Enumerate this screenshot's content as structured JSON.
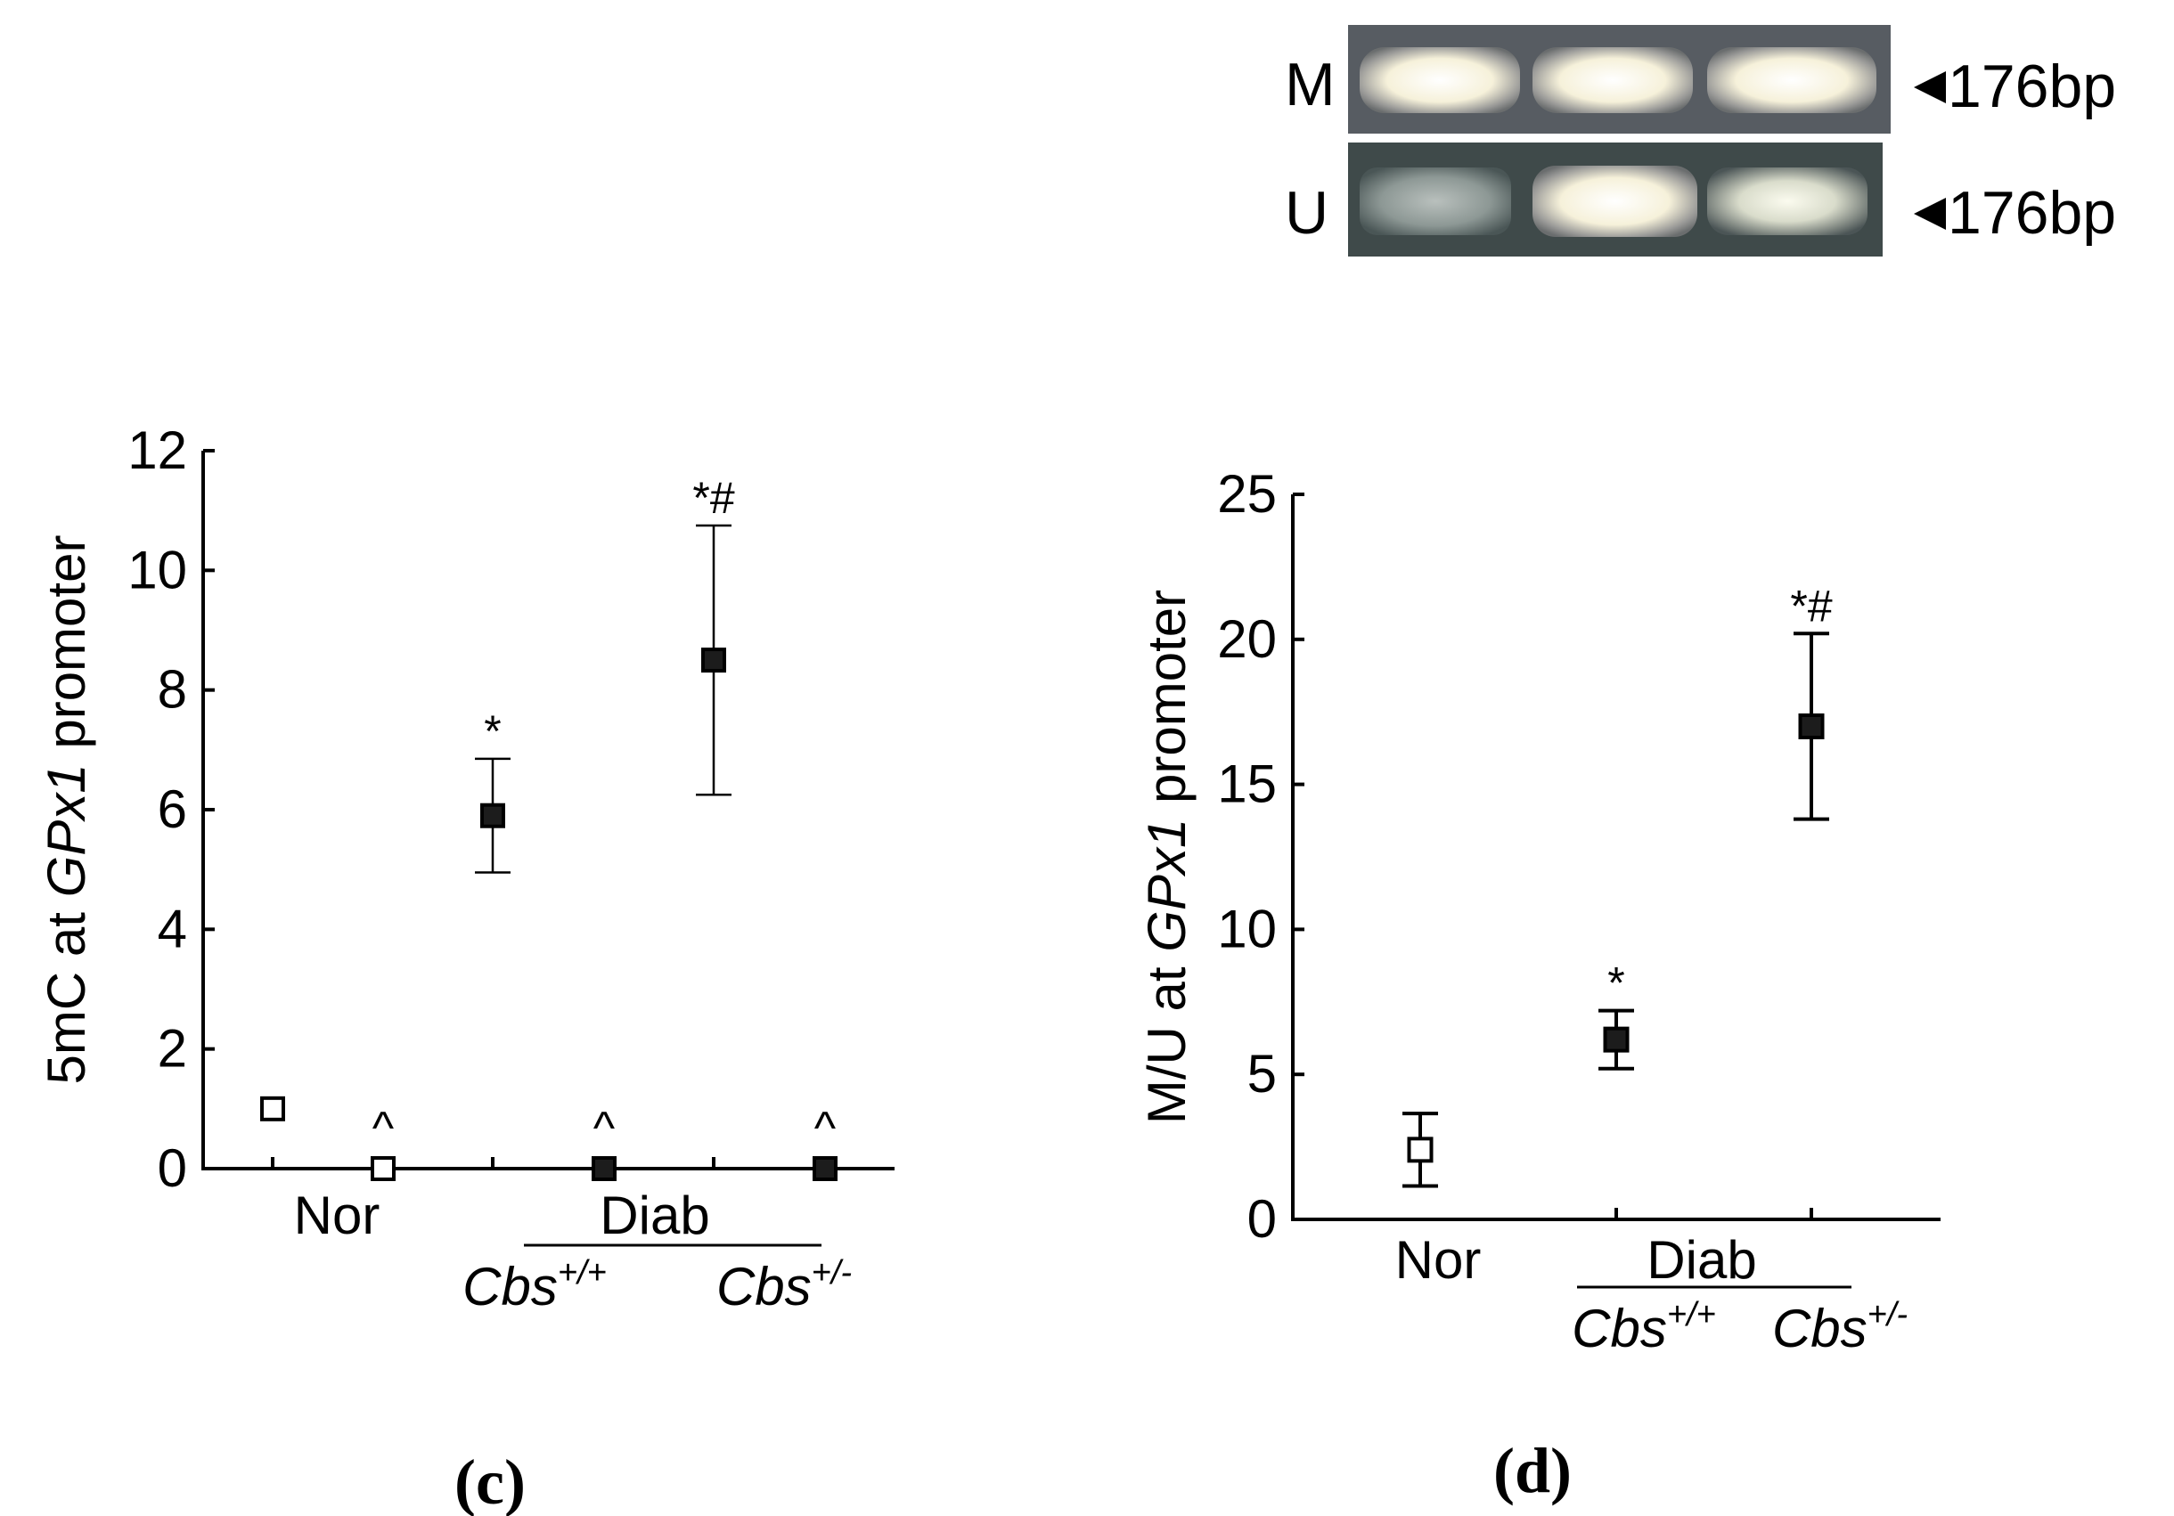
{
  "gel": {
    "rows": [
      {
        "label": "M",
        "marker": "176bp"
      },
      {
        "label": "U",
        "marker": "176bp"
      }
    ]
  },
  "chart_data": [
    {
      "type": "scatter",
      "panel": "(c)",
      "ylabel_parts": [
        "5mC at ",
        "GPx1",
        " promoter"
      ],
      "ylim": [
        0,
        12
      ],
      "yticks": [
        0,
        2,
        4,
        6,
        8,
        10,
        12
      ],
      "group_labels": {
        "nor": "Nor",
        "diab": "Diab",
        "cbs_wt": "Cbs",
        "cbs_wt_sup": "+/+",
        "cbs_het": "Cbs",
        "cbs_het_sup": "+/-"
      },
      "points": [
        {
          "x": 1,
          "y": 1.0,
          "err": 0,
          "filled": false,
          "annotation": ""
        },
        {
          "x": 2,
          "y": 0.0,
          "err": 0,
          "filled": false,
          "annotation": "^"
        },
        {
          "x": 3,
          "y": 5.9,
          "err": 0.95,
          "filled": true,
          "annotation": "*"
        },
        {
          "x": 4,
          "y": 0.0,
          "err": 0,
          "filled": true,
          "annotation": "^"
        },
        {
          "x": 5,
          "y": 8.5,
          "err": 2.25,
          "filled": true,
          "annotation": "*#"
        },
        {
          "x": 6,
          "y": 0.0,
          "err": 0,
          "filled": true,
          "annotation": "^"
        }
      ]
    },
    {
      "type": "scatter",
      "panel": "(d)",
      "ylabel_parts": [
        "M/U at ",
        "GPx1",
        " promoter"
      ],
      "ylim": [
        0,
        25
      ],
      "yticks": [
        0,
        5,
        10,
        15,
        20,
        25
      ],
      "group_labels": {
        "nor": "Nor",
        "diab": "Diab",
        "cbs_wt": "Cbs",
        "cbs_wt_sup": "+/+",
        "cbs_het": "Cbs",
        "cbs_het_sup": "+/-"
      },
      "points": [
        {
          "x": 1,
          "y": 2.4,
          "err": 1.25,
          "filled": false,
          "annotation": ""
        },
        {
          "x": 2,
          "y": 6.2,
          "err": 1.0,
          "filled": true,
          "annotation": "*"
        },
        {
          "x": 3,
          "y": 17.0,
          "err": 3.2,
          "filled": true,
          "annotation": "*#"
        }
      ]
    }
  ]
}
